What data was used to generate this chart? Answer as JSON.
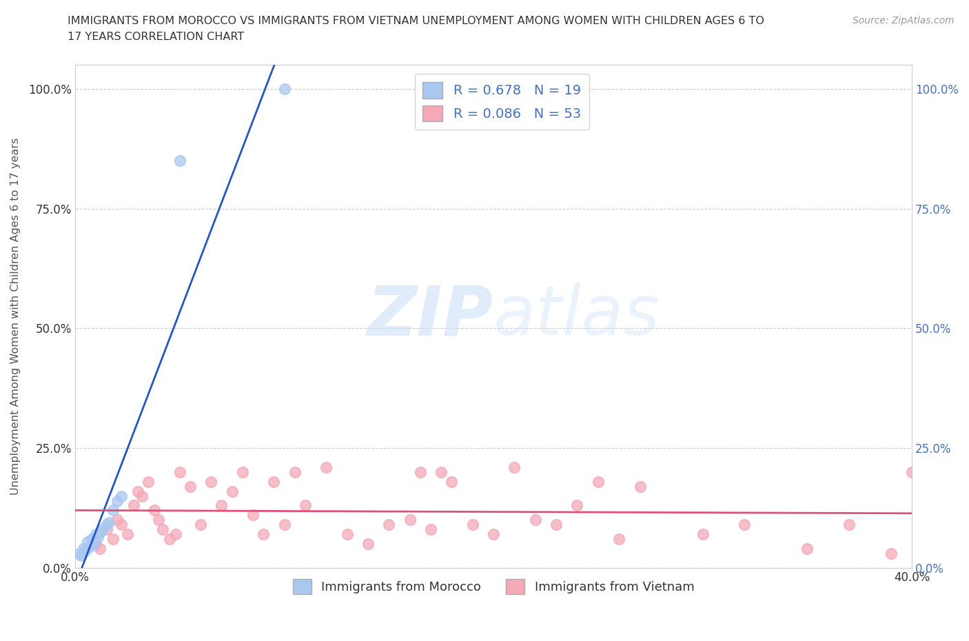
{
  "title_line1": "IMMIGRANTS FROM MOROCCO VS IMMIGRANTS FROM VIETNAM UNEMPLOYMENT AMONG WOMEN WITH CHILDREN AGES 6 TO",
  "title_line2": "17 YEARS CORRELATION CHART",
  "source": "Source: ZipAtlas.com",
  "ylabel": "Unemployment Among Women with Children Ages 6 to 17 years",
  "xlim": [
    0.0,
    0.4
  ],
  "ylim": [
    0.0,
    1.05
  ],
  "yticks": [
    0.0,
    0.25,
    0.5,
    0.75,
    1.0
  ],
  "ytick_labels": [
    "0.0%",
    "25.0%",
    "50.0%",
    "75.0%",
    "100.0%"
  ],
  "xticks": [
    0.0,
    0.05,
    0.1,
    0.15,
    0.2,
    0.25,
    0.3,
    0.35,
    0.4
  ],
  "xtick_labels": [
    "0.0%",
    "",
    "",
    "",
    "",
    "",
    "",
    "",
    "40.0%"
  ],
  "morocco_color": "#a8c8f0",
  "vietnam_color": "#f4a8b8",
  "morocco_line_color": "#2255cc",
  "vietnam_line_color": "#e0507a",
  "morocco_R": 0.678,
  "morocco_N": 19,
  "vietnam_R": 0.086,
  "vietnam_N": 53,
  "morocco_x": [
    0.002,
    0.003,
    0.004,
    0.005,
    0.006,
    0.007,
    0.008,
    0.009,
    0.01,
    0.011,
    0.012,
    0.013,
    0.015,
    0.016,
    0.018,
    0.02,
    0.022,
    0.05,
    0.1
  ],
  "morocco_y": [
    0.03,
    0.025,
    0.04,
    0.035,
    0.055,
    0.045,
    0.06,
    0.05,
    0.07,
    0.065,
    0.075,
    0.08,
    0.09,
    0.095,
    0.12,
    0.14,
    0.15,
    0.85,
    1.0
  ],
  "vietnam_x": [
    0.01,
    0.012,
    0.015,
    0.018,
    0.02,
    0.022,
    0.025,
    0.028,
    0.03,
    0.032,
    0.035,
    0.038,
    0.04,
    0.042,
    0.045,
    0.048,
    0.05,
    0.055,
    0.06,
    0.065,
    0.07,
    0.075,
    0.08,
    0.085,
    0.09,
    0.095,
    0.1,
    0.105,
    0.11,
    0.12,
    0.13,
    0.14,
    0.15,
    0.16,
    0.165,
    0.17,
    0.175,
    0.18,
    0.19,
    0.2,
    0.21,
    0.22,
    0.23,
    0.24,
    0.25,
    0.26,
    0.27,
    0.3,
    0.32,
    0.35,
    0.37,
    0.39,
    0.4
  ],
  "vietnam_y": [
    0.05,
    0.04,
    0.08,
    0.06,
    0.1,
    0.09,
    0.07,
    0.13,
    0.16,
    0.15,
    0.18,
    0.12,
    0.1,
    0.08,
    0.06,
    0.07,
    0.2,
    0.17,
    0.09,
    0.18,
    0.13,
    0.16,
    0.2,
    0.11,
    0.07,
    0.18,
    0.09,
    0.2,
    0.13,
    0.21,
    0.07,
    0.05,
    0.09,
    0.1,
    0.2,
    0.08,
    0.2,
    0.18,
    0.09,
    0.07,
    0.21,
    0.1,
    0.09,
    0.13,
    0.18,
    0.06,
    0.17,
    0.07,
    0.09,
    0.04,
    0.09,
    0.03,
    0.2
  ],
  "watermark_zip": "ZIP",
  "watermark_atlas": "atlas",
  "legend_labels": [
    "Immigrants from Morocco",
    "Immigrants from Vietnam"
  ],
  "background_color": "#ffffff",
  "grid_color": "#cccccc",
  "title_color": "#333333",
  "axis_label_color": "#555555",
  "left_tick_color": "#333333",
  "right_tick_color": "#4472c4"
}
